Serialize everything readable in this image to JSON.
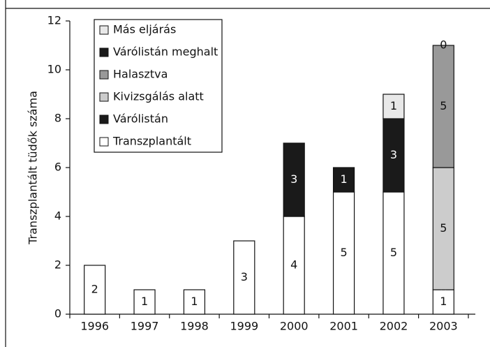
{
  "chart_data": {
    "type": "bar",
    "stacked": true,
    "categories": [
      "1996",
      "1997",
      "1998",
      "1999",
      "2000",
      "2001",
      "2002",
      "2003"
    ],
    "series": [
      {
        "name": "Más eljárás",
        "color": "#e8e8e8",
        "values": [
          null,
          null,
          null,
          null,
          null,
          null,
          1,
          0
        ]
      },
      {
        "name": "Várólistán meghalt",
        "color": "#1a1a1a",
        "values": [
          null,
          null,
          null,
          null,
          null,
          null,
          null,
          null
        ]
      },
      {
        "name": "Halasztva",
        "color": "#999999",
        "values": [
          null,
          null,
          null,
          null,
          null,
          null,
          null,
          5
        ]
      },
      {
        "name": "Kivizsgálás alatt",
        "color": "#cccccc",
        "values": [
          null,
          null,
          null,
          null,
          null,
          null,
          null,
          5
        ]
      },
      {
        "name": "Várólistán",
        "color": "#1a1a1a",
        "values": [
          null,
          null,
          null,
          null,
          3,
          1,
          3,
          0
        ]
      },
      {
        "name": "Transzplantált",
        "color": "#ffffff",
        "values": [
          2,
          1,
          1,
          3,
          4,
          5,
          5,
          1
        ]
      }
    ],
    "ylabel": "Transzplantált tüdők száma",
    "ylim": [
      0,
      12
    ],
    "yticks": [
      0,
      2,
      4,
      6,
      8,
      10,
      12
    ],
    "legend": "top-left",
    "grid": false
  }
}
